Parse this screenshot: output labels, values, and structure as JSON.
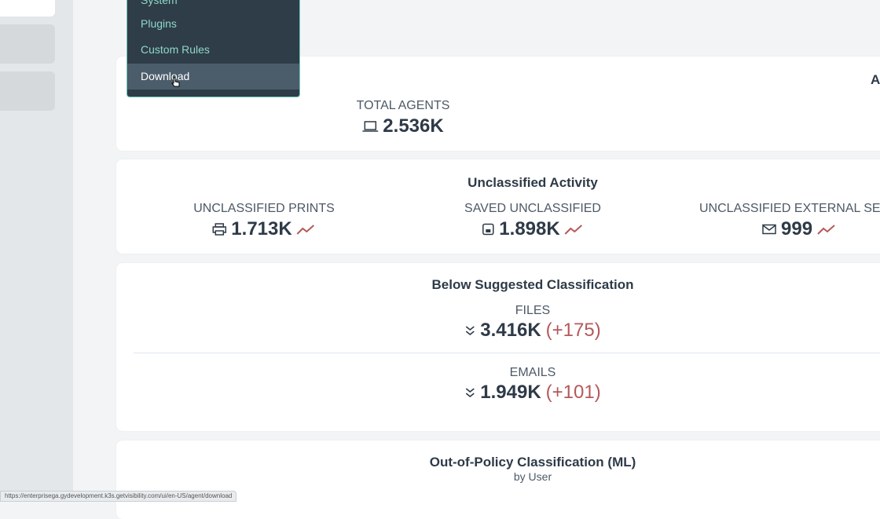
{
  "menu": {
    "items": [
      "System",
      "Plugins",
      "Custom Rules",
      "Download"
    ]
  },
  "agents_card": {
    "title": "Ag",
    "label": "TOTAL AGENTS",
    "value": "2.536K"
  },
  "unclassified_card": {
    "title": "Unclassified Activity",
    "metrics": [
      {
        "label": "UNCLASSIFIED PRINTS",
        "value": "1.713K"
      },
      {
        "label": "SAVED UNCLASSIFIED",
        "value": "1.898K"
      },
      {
        "label": "UNCLASSIFIED EXTERNAL SEN",
        "value": "999"
      }
    ]
  },
  "below_card": {
    "title": "Below Suggested Classification",
    "metrics": [
      {
        "label": "FILES",
        "value": "3.416K",
        "delta": "(+175)"
      },
      {
        "label": "EMAILS",
        "value": "1.949K",
        "delta": "(+101)"
      }
    ]
  },
  "policy_card": {
    "title": "Out-of-Policy Classification (ML)",
    "subtitle": "by User"
  },
  "status_bar": {
    "url": "https://enterprisega.gydevelopment.k3s.getvisibility.com/ui/en-US/agent/download"
  }
}
